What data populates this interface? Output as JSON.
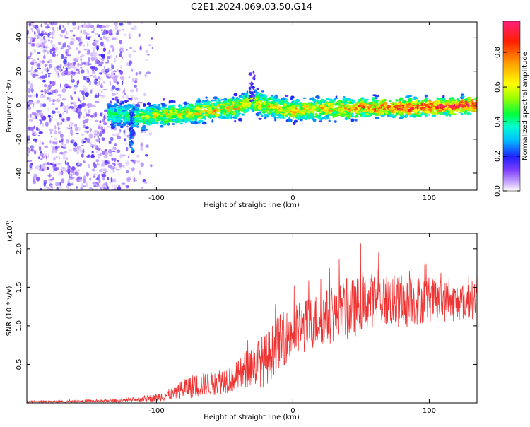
{
  "title": "C2E1.2024.069.03.50.G14",
  "chart_data": [
    {
      "type": "heatmap",
      "xlabel": "Height of straight line (km)",
      "ylabel": "Frequency (Hz)",
      "xlim": [
        -195,
        135
      ],
      "ylim": [
        -50,
        49
      ],
      "xticks": [
        -100,
        0,
        100
      ],
      "yticks": [
        -40,
        -20,
        0,
        20,
        40
      ],
      "colorbar": {
        "label": "Normalized spectral amplitude",
        "range": [
          0.0,
          0.98
        ],
        "ticks": [
          0.0,
          0.2,
          0.4,
          0.6,
          0.8
        ],
        "tick_labels": [
          "0.0",
          "0.2",
          "0.4",
          "0.6",
          "0.8"
        ]
      },
      "ridge": {
        "x": [
          -135,
          -120,
          -110,
          -100,
          -80,
          -60,
          -40,
          -30,
          -20,
          -10,
          0,
          20,
          40,
          60,
          80,
          100,
          120,
          135
        ],
        "y": [
          -5,
          -6,
          -7,
          -6,
          -5,
          -3,
          -1,
          2,
          0,
          -2,
          -3,
          -2,
          -2,
          -1.5,
          -1.5,
          -1,
          -0.5,
          0
        ],
        "amplitude": [
          0.3,
          0.35,
          0.45,
          0.5,
          0.55,
          0.6,
          0.6,
          0.55,
          0.55,
          0.6,
          0.6,
          0.6,
          0.65,
          0.75,
          0.8,
          0.85,
          0.9,
          0.95
        ]
      }
    },
    {
      "type": "line",
      "xlabel": "Height of straight line (km)",
      "ylabel": "SNR (10 * v/v)",
      "yunit_label": "(x10",
      "yunit_exp": "4",
      "yunit_close": ")",
      "xlim": [
        -195,
        135
      ],
      "ylim": [
        0,
        22000
      ],
      "xticks": [
        -100,
        0,
        100
      ],
      "yticks": [
        0.5,
        1.0,
        1.5,
        2.0
      ],
      "ytick_labels": [
        "0.5",
        "1.0",
        "1.5",
        "2.0"
      ],
      "series": [
        {
          "color": "#ee3333",
          "envelope": {
            "x": [
              -195,
              -140,
              -120,
              -100,
              -85,
              -80,
              -60,
              -40,
              -30,
              -20,
              -10,
              0,
              20,
              40,
              60,
              80,
              100,
              120,
              135
            ],
            "mean": [
              150,
              250,
              350,
              700,
              1300,
              2000,
              2500,
              3500,
              5000,
              5500,
              8000,
              9000,
              11000,
              12000,
              13500,
              13000,
              13500,
              13000,
              13500
            ],
            "spread": [
              100,
              150,
              250,
              500,
              900,
              1500,
              1600,
              2000,
              3000,
              3500,
              3500,
              3500,
              3500,
              4000,
              3500,
              3500,
              3000,
              2500,
              2500
            ]
          }
        }
      ]
    }
  ]
}
